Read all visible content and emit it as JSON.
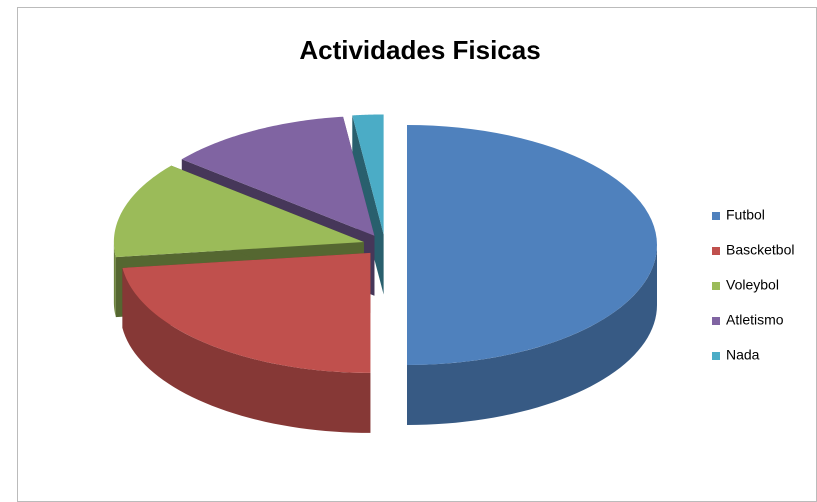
{
  "chart_data": {
    "type": "pie",
    "title": "Actividades Fisicas",
    "categories": [
      "Futbol",
      "Bascketbol",
      "Voleybol",
      "Atletismo",
      "Nada"
    ],
    "values": [
      50,
      23,
      13,
      12,
      2
    ],
    "colors": [
      "#4f81bd",
      "#c0504d",
      "#9bbb59",
      "#8064a2",
      "#4bacc6"
    ],
    "legend": "right"
  }
}
